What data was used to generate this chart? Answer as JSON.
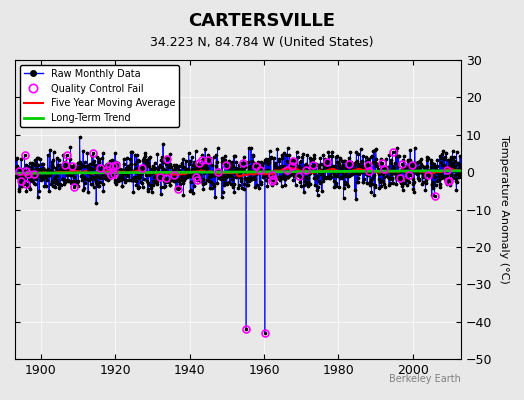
{
  "title": "CARTERSVILLE",
  "subtitle": "34.223 N, 84.784 W (United States)",
  "ylabel": "Temperature Anomaly (°C)",
  "watermark": "Berkeley Earth",
  "xlim": [
    1893,
    2013
  ],
  "ylim": [
    -50,
    30
  ],
  "yticks": [
    -50,
    -40,
    -30,
    -20,
    -10,
    0,
    10,
    20,
    30
  ],
  "xticks": [
    1900,
    1920,
    1940,
    1960,
    1980,
    2000
  ],
  "bg_color": "#e8e8e8",
  "plot_bg_color": "#e8e8e8",
  "line_color": "#0000ff",
  "marker_color": "#000000",
  "qc_color": "#ff00ff",
  "moving_avg_color": "#ff0000",
  "trend_color": "#00cc00",
  "seed": 42,
  "start_year": 1893,
  "end_year": 2012,
  "anomaly_spike_years": [
    1955,
    1960
  ],
  "spike_values": [
    -42,
    -43
  ],
  "spike_qc_values": [
    -41,
    -41
  ],
  "trend_slope": 0.003,
  "trend_intercept": -0.5
}
